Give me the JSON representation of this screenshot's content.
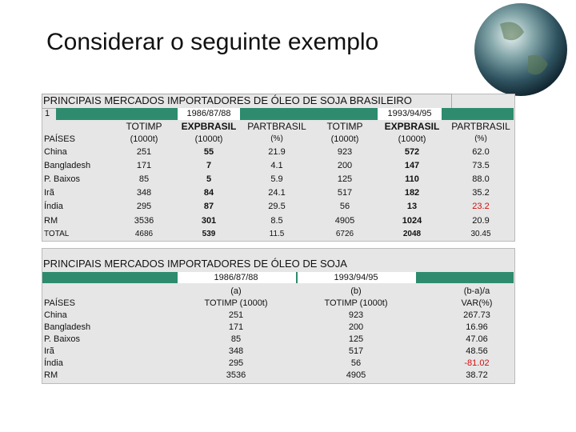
{
  "title": "Considerar o seguinte exemplo",
  "table1": {
    "title": "PRINCIPAIS MERCADOS IMPORTADORES DE ÓLEO DE SOJA BRASILEIRO",
    "row_number": "1",
    "periods": [
      "1986/87/88",
      "1993/94/95"
    ],
    "header1": [
      "TOTIMP",
      "EXPBRASIL",
      "PARTBRASIL",
      "TOTIMP",
      "EXPBRASIL",
      "PARTBRASIL"
    ],
    "header2": [
      "PAÍSES",
      "(1000t)",
      "(1000t)",
      "(%)",
      "(1000t)",
      "(1000t)",
      "(%)"
    ],
    "rows": [
      [
        "China",
        "251",
        "55",
        "21.9",
        "923",
        "572",
        "62.0"
      ],
      [
        "Bangladesh",
        "171",
        "7",
        "4.1",
        "200",
        "147",
        "73.5"
      ],
      [
        "P. Baixos",
        "85",
        "5",
        "5.9",
        "125",
        "110",
        "88.0"
      ],
      [
        "Irã",
        "348",
        "84",
        "24.1",
        "517",
        "182",
        "35.2"
      ],
      [
        "Índia",
        "295",
        "87",
        "29.5",
        "56",
        "13",
        "23.2"
      ],
      [
        "RM",
        "3536",
        "301",
        "8.5",
        "4905",
        "1024",
        "20.9"
      ],
      [
        "TOTAL",
        "4686",
        "539",
        "11.5",
        "6726",
        "2048",
        "30.45"
      ]
    ]
  },
  "table2": {
    "title": "PRINCIPAIS MERCADOS IMPORTADORES DE ÓLEO DE SOJA",
    "periods": [
      "1986/87/88",
      "1993/94/95"
    ],
    "header1": [
      "(a)",
      "(b)",
      "(b-a)/a"
    ],
    "header2": [
      "PAÍSES",
      "TOTIMP (1000t)",
      "TOTIMP (1000t)",
      "VAR(%)"
    ],
    "rows": [
      [
        "China",
        "251",
        "923",
        "267.73"
      ],
      [
        "Bangladesh",
        "171",
        "200",
        "16.96"
      ],
      [
        "P. Baixos",
        "85",
        "125",
        "47.06"
      ],
      [
        "Irã",
        "348",
        "517",
        "48.56"
      ],
      [
        "Índia",
        "295",
        "56",
        "-81.02"
      ],
      [
        "RM",
        "3536",
        "4905",
        "38.72"
      ]
    ]
  }
}
